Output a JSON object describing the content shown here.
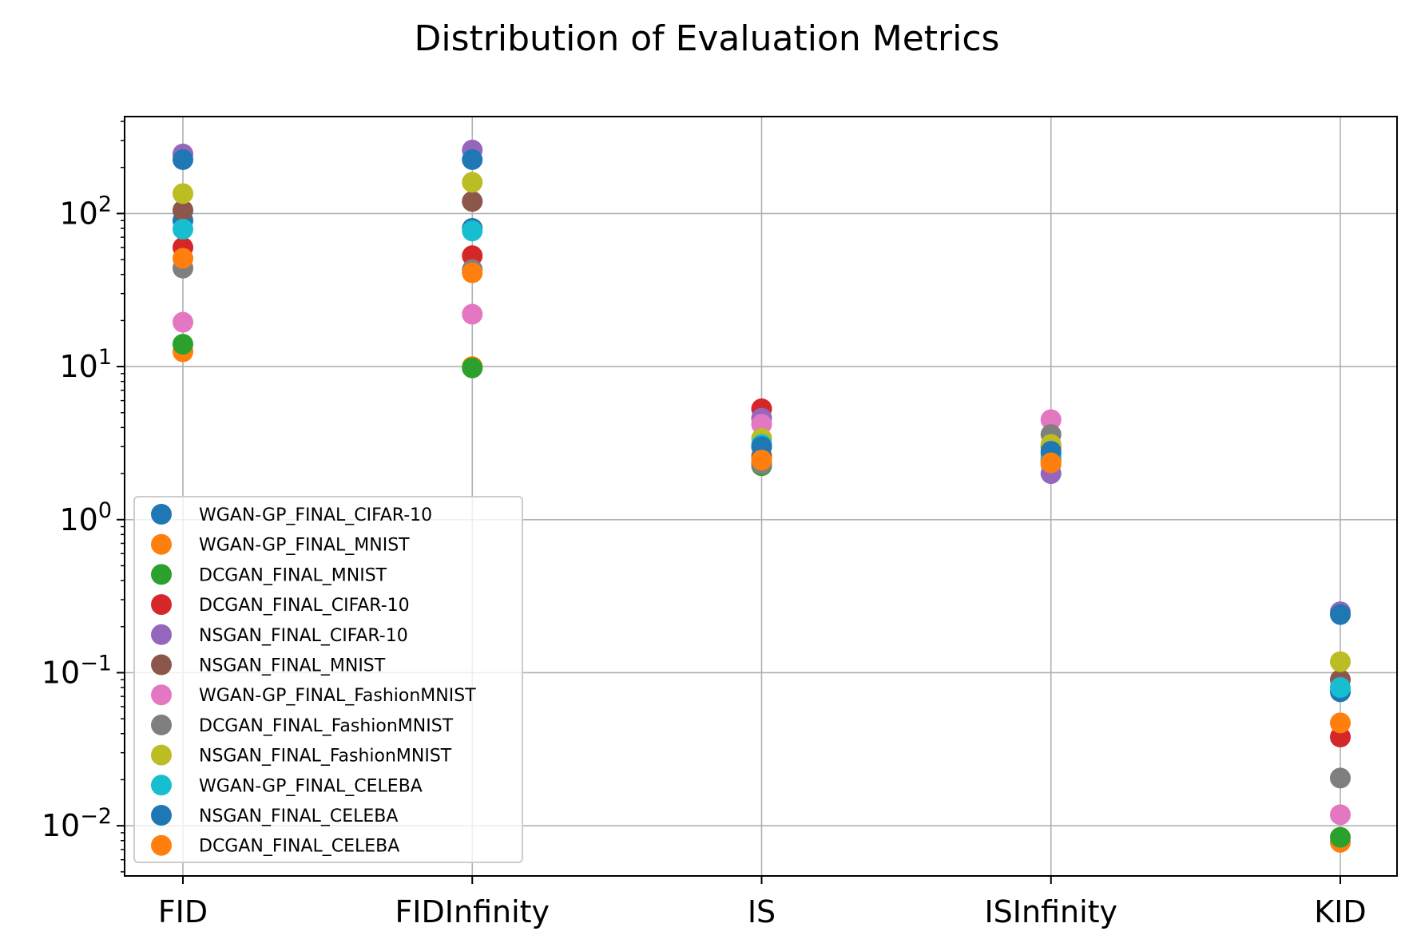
{
  "chart_data": {
    "type": "scatter",
    "title": "Distribution of Evaluation Metrics",
    "xlabel": "",
    "ylabel": "",
    "categories": [
      "FID",
      "FIDInfinity",
      "IS",
      "ISInfinity",
      "KID"
    ],
    "y_scale": "log",
    "ylim": [
      0.0047,
      430
    ],
    "y_ticks": [
      {
        "value": 0.01,
        "base": "10",
        "exp": "−2"
      },
      {
        "value": 0.1,
        "base": "10",
        "exp": "−1"
      },
      {
        "value": 1,
        "base": "10",
        "exp": "0"
      },
      {
        "value": 10,
        "base": "10",
        "exp": "1"
      },
      {
        "value": 100,
        "base": "10",
        "exp": "2"
      }
    ],
    "grid": true,
    "legend_position": "lower-left",
    "series": [
      {
        "name": "WGAN-GP_FINAL_CIFAR-10",
        "color": "#1f77b4",
        "values": [
          90,
          80,
          3.0,
          2.7,
          0.075
        ]
      },
      {
        "name": "WGAN-GP_FINAL_MNIST",
        "color": "#ff7f0e",
        "values": [
          12.5,
          10.0,
          2.4,
          2.3,
          0.0078
        ]
      },
      {
        "name": "DCGAN_FINAL_MNIST",
        "color": "#2ca02c",
        "values": [
          14,
          9.8,
          2.25,
          2.4,
          0.0084
        ]
      },
      {
        "name": "DCGAN_FINAL_CIFAR-10",
        "color": "#d62728",
        "values": [
          60,
          53,
          5.3,
          3.0,
          0.038
        ]
      },
      {
        "name": "NSGAN_FINAL_CIFAR-10",
        "color": "#9467bd",
        "values": [
          245,
          260,
          4.6,
          2.0,
          0.25
        ]
      },
      {
        "name": "NSGAN_FINAL_MNIST",
        "color": "#8c564b",
        "values": [
          105,
          120,
          2.6,
          2.5,
          0.09
        ]
      },
      {
        "name": "WGAN-GP_FINAL_FashionMNIST",
        "color": "#e377c2",
        "values": [
          19.5,
          22,
          4.2,
          4.5,
          0.0118
        ]
      },
      {
        "name": "DCGAN_FINAL_FashionMNIST",
        "color": "#7f7f7f",
        "values": [
          44,
          43,
          2.3,
          3.6,
          0.0205
        ]
      },
      {
        "name": "NSGAN_FINAL_FashionMNIST",
        "color": "#bcbd22",
        "values": [
          135,
          160,
          3.4,
          3.1,
          0.118
        ]
      },
      {
        "name": "WGAN-GP_FINAL_CELEBA",
        "color": "#17becf",
        "values": [
          79,
          77,
          3.1,
          2.6,
          0.08
        ]
      },
      {
        "name": "NSGAN_FINAL_CELEBA",
        "color": "#1f77b4",
        "values": [
          225,
          225,
          3.0,
          2.8,
          0.24
        ]
      },
      {
        "name": "DCGAN_FINAL_CELEBA",
        "color": "#ff7f0e",
        "values": [
          51,
          41,
          2.45,
          2.35,
          0.047
        ]
      }
    ]
  }
}
